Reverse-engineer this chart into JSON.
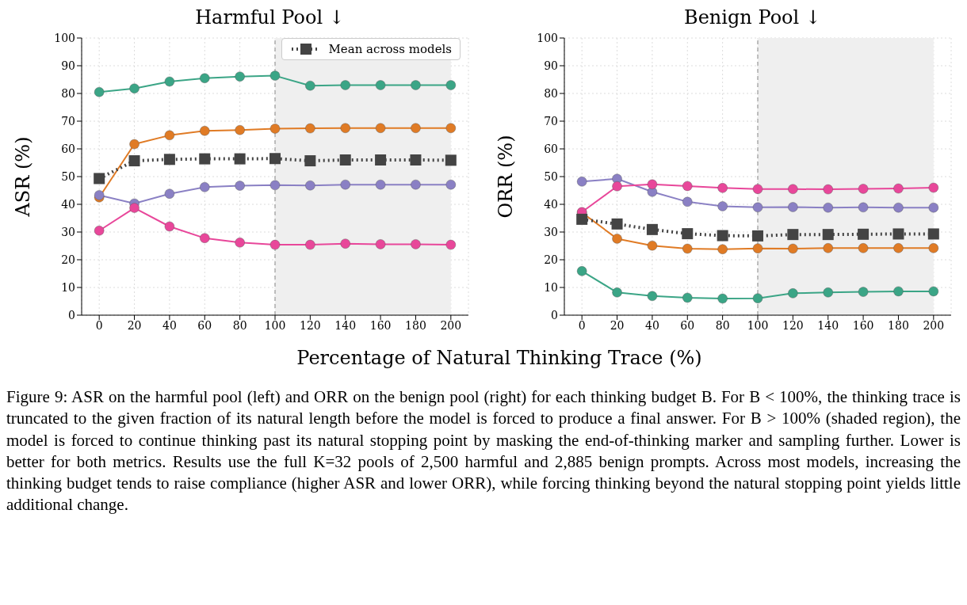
{
  "chart_data": [
    {
      "type": "line",
      "title": "Harmful Pool ↓",
      "ylabel": "ASR (%)",
      "xlabel": "Percentage of Natural Thinking Trace (%)",
      "x": [
        0,
        20,
        40,
        60,
        80,
        100,
        120,
        140,
        160,
        180,
        200
      ],
      "series": [
        {
          "color": "#3ba586",
          "values": [
            80.5,
            81.8,
            84.3,
            85.5,
            86.1,
            86.4,
            82.8,
            83.0,
            83.0,
            83.0,
            83.0
          ]
        },
        {
          "color": "#e07b25",
          "values": [
            42.5,
            61.7,
            64.9,
            66.5,
            66.8,
            67.3,
            67.4,
            67.5,
            67.5,
            67.5,
            67.5
          ]
        },
        {
          "color": "#8a80c4",
          "values": [
            43.3,
            40.3,
            43.8,
            46.2,
            46.7,
            46.9,
            46.8,
            47.1,
            47.1,
            47.1,
            47.1
          ]
        },
        {
          "color": "#e8479a",
          "values": [
            30.5,
            38.7,
            32.0,
            27.8,
            26.2,
            25.4,
            25.4,
            25.8,
            25.6,
            25.6,
            25.4
          ]
        },
        {
          "name": "Mean across models",
          "color": "#444444",
          "marker": "square",
          "line_style": "dotted",
          "values": [
            49.3,
            55.7,
            56.2,
            56.4,
            56.4,
            56.5,
            55.7,
            56.0,
            56.0,
            56.0,
            55.9
          ]
        }
      ],
      "marker": "circle",
      "line_style": "solid",
      "xlim": [
        -10,
        210
      ],
      "xticks": [
        0,
        20,
        40,
        60,
        80,
        100,
        120,
        140,
        160,
        180,
        200
      ],
      "ylim": [
        0,
        100
      ],
      "yticks": [
        0,
        10,
        20,
        30,
        40,
        50,
        60,
        70,
        80,
        90,
        100
      ],
      "bands": [
        {
          "axis": "x",
          "from": 100,
          "to": 200,
          "color": "#efefef"
        }
      ],
      "ref_lines": [
        {
          "axis": "x",
          "value": 100,
          "color": "#888888",
          "line_style": "dashed"
        }
      ],
      "grid": true,
      "legend": "top right"
    },
    {
      "type": "line",
      "title": "Benign Pool ↓",
      "ylabel": "ORR (%)",
      "x": [
        0,
        20,
        40,
        60,
        80,
        100,
        120,
        140,
        160,
        180,
        200
      ],
      "series": [
        {
          "color": "#3ba586",
          "values": [
            15.9,
            8.2,
            6.9,
            6.3,
            6.0,
            6.1,
            7.9,
            8.2,
            8.4,
            8.6,
            8.6
          ]
        },
        {
          "color": "#e07b25",
          "values": [
            37.0,
            27.6,
            25.1,
            24.0,
            23.8,
            24.1,
            24.0,
            24.2,
            24.2,
            24.2,
            24.2
          ]
        },
        {
          "color": "#8a80c4",
          "values": [
            48.2,
            49.2,
            44.5,
            40.9,
            39.3,
            38.9,
            39.0,
            38.8,
            38.9,
            38.8,
            38.8
          ]
        },
        {
          "color": "#e8479a",
          "values": [
            37.2,
            46.5,
            47.2,
            46.6,
            45.9,
            45.5,
            45.5,
            45.4,
            45.6,
            45.7,
            46.0
          ]
        },
        {
          "color": "#444444",
          "marker": "square",
          "line_style": "dotted",
          "values": [
            34.6,
            32.9,
            30.9,
            29.4,
            28.7,
            28.6,
            29.1,
            29.1,
            29.2,
            29.3,
            29.3
          ]
        }
      ],
      "marker": "circle",
      "line_style": "solid",
      "xlim": [
        -10,
        210
      ],
      "xticks": [
        0,
        20,
        40,
        60,
        80,
        100,
        120,
        140,
        160,
        180,
        200
      ],
      "ylim": [
        0,
        100
      ],
      "yticks": [
        0,
        10,
        20,
        30,
        40,
        50,
        60,
        70,
        80,
        90,
        100
      ],
      "bands": [
        {
          "axis": "x",
          "from": 100,
          "to": 200,
          "color": "#efefef"
        }
      ],
      "ref_lines": [
        {
          "axis": "x",
          "value": 100,
          "color": "#888888",
          "line_style": "dashed"
        }
      ],
      "grid": true,
      "annotations": [
        "Figure 9: ASR on the harmful pool (left) and ORR on the benign pool (right) for each thinking budget B. For B < 100%, the thinking trace is truncated to the given fraction of its natural length before the model is forced to produce a final answer. For B > 100% (shaded region), the model is forced to continue thinking past its natural stopping point by masking the end-of-thinking marker and sampling further. Lower is better for both metrics. Results use the full K=32 pools of 2,500 harmful and 2,885 benign prompts. Across most models, increasing the thinking budget tends to raise compliance (higher ASR and lower ORR), while forcing thinking beyond the natural stopping point yields little additional change."
      ]
    }
  ]
}
